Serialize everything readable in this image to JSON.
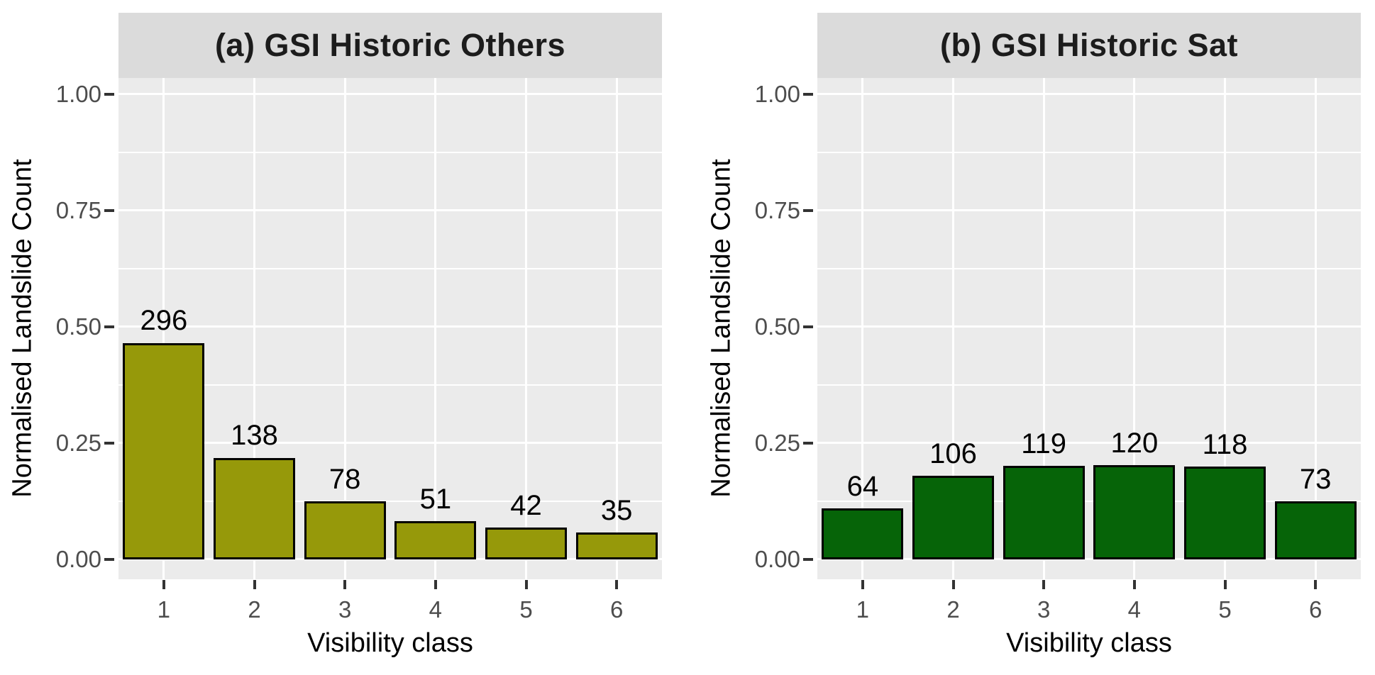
{
  "figure_title": "",
  "style": {
    "panel_bg": "#EBEBEB",
    "strip_bg": "#DBDBDB",
    "grid_color": "#FFFFFF",
    "tick_mark_color": "#333333",
    "tick_label_color": "#4D4D4D",
    "axis_title_color": "#000000",
    "strip_text_color": "#1C1C1C",
    "bar_border_color": "#000000"
  },
  "chart_data": [
    {
      "type": "bar",
      "title": "(a) GSI Historic Others",
      "xlabel": "Visibility class",
      "ylabel": "Normalised Landslide Count",
      "categories": [
        "1",
        "2",
        "3",
        "4",
        "5",
        "6"
      ],
      "counts": [
        296,
        138,
        78,
        51,
        42,
        35
      ],
      "values": [
        0.4625,
        0.2156,
        0.1219,
        0.0797,
        0.0656,
        0.0547
      ],
      "bar_labels": [
        "296",
        "138",
        "78",
        "51",
        "42",
        "35"
      ],
      "bar_color": "#96990A",
      "ylim": [
        0,
        1
      ],
      "yticks": [
        0,
        0.25,
        0.5,
        0.75,
        1.0
      ],
      "ytick_labels": [
        "0.00",
        "0.25",
        "0.50",
        "0.75",
        "1.00"
      ],
      "grid": true,
      "legend": false,
      "bar_width_fraction": 0.9
    },
    {
      "type": "bar",
      "title": "(b) GSI Historic Sat",
      "xlabel": "Visibility class",
      "ylabel": "Normalised Landslide Count",
      "categories": [
        "1",
        "2",
        "3",
        "4",
        "5",
        "6"
      ],
      "counts": [
        64,
        106,
        119,
        120,
        118,
        73
      ],
      "values": [
        0.1067,
        0.1767,
        0.1983,
        0.2,
        0.1967,
        0.1217
      ],
      "bar_labels": [
        "64",
        "106",
        "119",
        "120",
        "118",
        "73"
      ],
      "bar_color": "#066408",
      "ylim": [
        0,
        1
      ],
      "yticks": [
        0,
        0.25,
        0.5,
        0.75,
        1.0
      ],
      "ytick_labels": [
        "0.00",
        "0.25",
        "0.50",
        "0.75",
        "1.00"
      ],
      "grid": true,
      "legend": false,
      "bar_width_fraction": 0.9
    }
  ]
}
